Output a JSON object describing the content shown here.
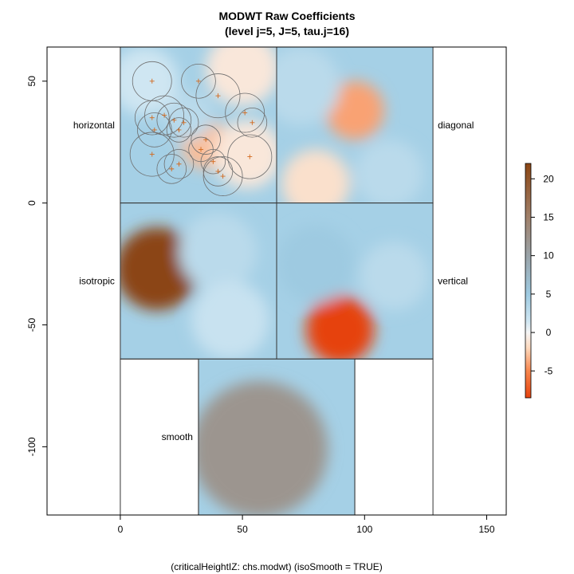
{
  "chart_data": {
    "type": "heatmap",
    "title": "MODWT Raw Coefficients",
    "subtitle": "(level j=5, J=5, tau.j=16)",
    "footnote": "(criticalHeightIZ: chs.modwt) (isoSmooth = TRUE)",
    "x_ticks": [
      0,
      50,
      100,
      150
    ],
    "y_ticks": [
      50,
      0,
      -50,
      -100
    ],
    "xlim": [
      -30,
      158
    ],
    "ylim": [
      -128,
      64
    ],
    "panels": [
      {
        "name": "horizontal",
        "label": "horizontal",
        "extent": {
          "x": [
            0,
            64
          ],
          "y": [
            0,
            64
          ]
        }
      },
      {
        "name": "diagonal",
        "label": "diagonal",
        "extent": {
          "x": [
            64,
            128
          ],
          "y": [
            0,
            64
          ]
        }
      },
      {
        "name": "isotropic",
        "label": "isotropic",
        "extent": {
          "x": [
            0,
            64
          ],
          "y": [
            -64,
            0
          ]
        }
      },
      {
        "name": "vertical",
        "label": "vertical",
        "extent": {
          "x": [
            64,
            128
          ],
          "y": [
            -64,
            0
          ]
        }
      },
      {
        "name": "smooth",
        "label": "smooth",
        "extent": {
          "x": [
            32,
            96
          ],
          "y": [
            -128,
            -64
          ]
        }
      }
    ],
    "colorbar": {
      "ticks": [
        20,
        15,
        10,
        5,
        0,
        -5
      ],
      "range": [
        -8.5,
        22
      ],
      "colors": [
        {
          "v": 22,
          "c": "#8b4513"
        },
        {
          "v": 15,
          "c": "#a0806a"
        },
        {
          "v": 10,
          "c": "#9aa3a8"
        },
        {
          "v": 5,
          "c": "#9ecae1"
        },
        {
          "v": 1.5,
          "c": "#cfe6f2"
        },
        {
          "v": 0,
          "c": "#f5f5f5"
        },
        {
          "v": -2,
          "c": "#fcd9be"
        },
        {
          "v": -5,
          "c": "#f7864d"
        },
        {
          "v": -8.5,
          "c": "#e6420e"
        }
      ]
    },
    "blobs": [
      {
        "panel": "horizontal",
        "x": 35,
        "y": 24,
        "r": 10,
        "v": -3
      },
      {
        "panel": "horizontal",
        "x": 28,
        "y": 36,
        "r": 10,
        "v": 3
      },
      {
        "panel": "horizontal",
        "x": 10,
        "y": 50,
        "r": 14,
        "v": 1.5
      },
      {
        "panel": "horizontal",
        "x": 52,
        "y": 20,
        "r": 14,
        "v": -1
      },
      {
        "panel": "horizontal",
        "x": 50,
        "y": 55,
        "r": 15,
        "v": -1
      },
      {
        "panel": "diagonal",
        "x": 96,
        "y": 38,
        "r": 12,
        "v": -4
      },
      {
        "panel": "diagonal",
        "x": 80,
        "y": 8,
        "r": 14,
        "v": -1.5
      },
      {
        "panel": "diagonal",
        "x": 74,
        "y": 48,
        "r": 16,
        "v": 3
      },
      {
        "panel": "diagonal",
        "x": 110,
        "y": 12,
        "r": 14,
        "v": 3
      },
      {
        "panel": "isotropic",
        "x": 15,
        "y": -27,
        "r": 17,
        "v": 22
      },
      {
        "panel": "isotropic",
        "x": 40,
        "y": -20,
        "r": 16,
        "v": 3
      },
      {
        "panel": "isotropic",
        "x": 45,
        "y": -48,
        "r": 16,
        "v": 2
      },
      {
        "panel": "vertical",
        "x": 90,
        "y": -52,
        "r": 14,
        "v": -8.5
      },
      {
        "panel": "vertical",
        "x": 80,
        "y": -25,
        "r": 16,
        "v": 5
      },
      {
        "panel": "vertical",
        "x": 112,
        "y": -30,
        "r": 14,
        "v": 3
      },
      {
        "panel": "smooth",
        "x": 57,
        "y": -101,
        "r": 28,
        "v": 12
      }
    ],
    "circles": [
      {
        "x": 13,
        "y": 50,
        "r": 8
      },
      {
        "x": 32,
        "y": 50,
        "r": 7
      },
      {
        "x": 40,
        "y": 44,
        "r": 9
      },
      {
        "x": 13,
        "y": 35,
        "r": 7
      },
      {
        "x": 14,
        "y": 30,
        "r": 7
      },
      {
        "x": 18,
        "y": 36,
        "r": 8
      },
      {
        "x": 22,
        "y": 34,
        "r": 7
      },
      {
        "x": 26,
        "y": 33,
        "r": 6
      },
      {
        "x": 24,
        "y": 30,
        "r": 5
      },
      {
        "x": 13,
        "y": 20,
        "r": 9
      },
      {
        "x": 21,
        "y": 14,
        "r": 6
      },
      {
        "x": 24,
        "y": 16,
        "r": 6
      },
      {
        "x": 35,
        "y": 26,
        "r": 6
      },
      {
        "x": 33,
        "y": 22,
        "r": 5
      },
      {
        "x": 38,
        "y": 17,
        "r": 5
      },
      {
        "x": 40,
        "y": 13,
        "r": 6
      },
      {
        "x": 42,
        "y": 11,
        "r": 8
      },
      {
        "x": 51,
        "y": 37,
        "r": 8
      },
      {
        "x": 54,
        "y": 33,
        "r": 6
      },
      {
        "x": 53,
        "y": 19,
        "r": 9
      }
    ]
  }
}
